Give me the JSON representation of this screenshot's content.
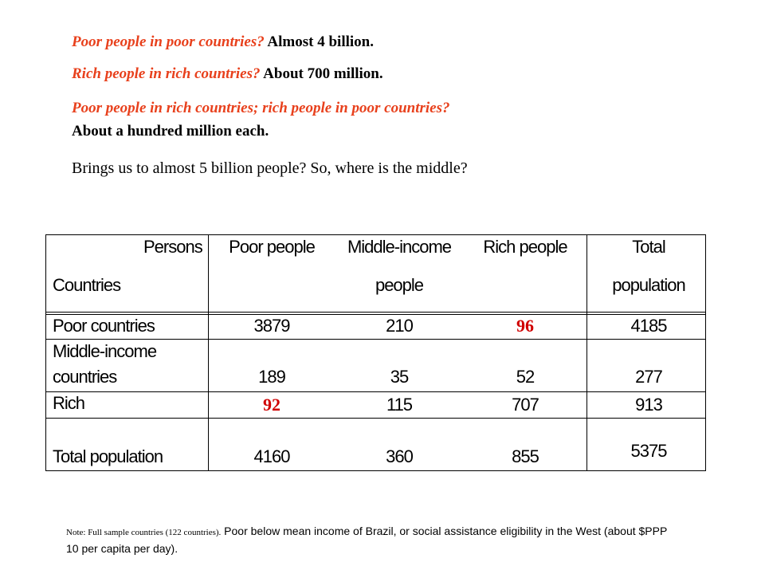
{
  "intro": {
    "line1_q": "Poor people in poor countries?",
    "line1_a": " Almost 4 billion.",
    "line2_q": "Rich people in rich countries?",
    "line2_a": " About 700 million.",
    "line3_q": "Poor people in rich countries; rich people in poor countries?",
    "line4_a": "About a hundred million each.",
    "line5": "Brings us to almost 5 billion people? So, where is the middle?"
  },
  "table": {
    "header": {
      "corner_top": "Persons",
      "corner_bottom": "Countries",
      "col1": "Poor people",
      "col2_line1": "Middle-income",
      "col2_line2": "people",
      "col3": "Rich people",
      "col4_line1": "Total",
      "col4_line2": "population"
    },
    "rows": [
      {
        "label": "Poor countries",
        "label2": "",
        "poor": "3879",
        "middle": "210",
        "rich": "96",
        "total": "4185"
      },
      {
        "label": "Middle-income",
        "label2": "countries",
        "poor": "189",
        "middle": "35",
        "rich": "52",
        "total": "277"
      },
      {
        "label": "Rich",
        "label2": "",
        "poor": "92",
        "middle": "115",
        "rich": "707",
        "total": "913"
      },
      {
        "label": "Total population",
        "label2": "",
        "poor": "4160",
        "middle": "360",
        "rich": "855",
        "total": "5375"
      }
    ],
    "highlight_color": "#d00000"
  },
  "note": {
    "small_part": "Note: Full sample countries (122 countries).",
    "main_part": "  Poor below mean income of Brazil, or social assistance eligibility in the West (about $PPP 10 per capita per day)."
  },
  "colors": {
    "question_red": "#e8401c"
  }
}
